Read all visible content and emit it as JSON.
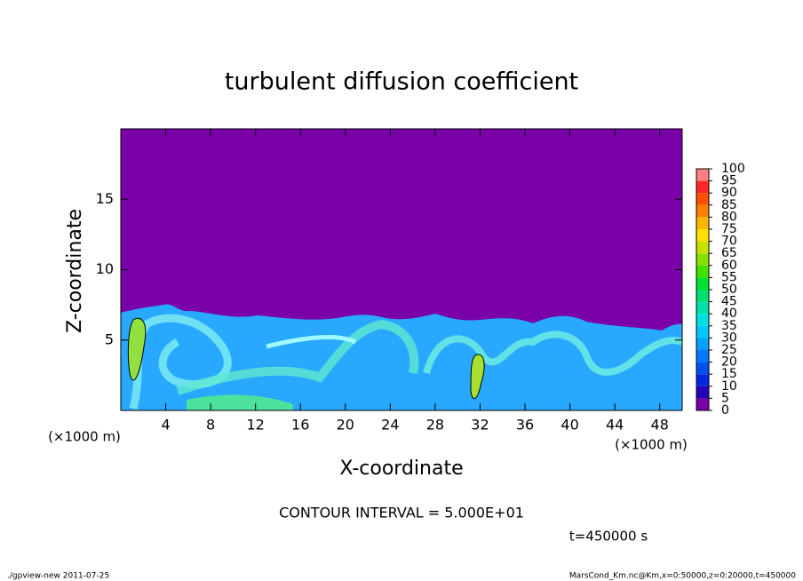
{
  "chart_data": {
    "type": "heatmap",
    "title": "turbulent diffusion coefficient",
    "xlabel": "X-coordinate",
    "ylabel": "Z-coordinate",
    "x_unit_label": "(×1000 m)",
    "xlim": [
      0,
      50
    ],
    "xticks": [
      4,
      8,
      12,
      16,
      20,
      24,
      28,
      32,
      36,
      40,
      44,
      48
    ],
    "ylim": [
      0,
      20
    ],
    "yticks": [
      5,
      10,
      15
    ],
    "colorbar": {
      "levels": [
        0,
        5,
        10,
        15,
        20,
        25,
        30,
        35,
        40,
        45,
        50,
        55,
        60,
        65,
        70,
        75,
        80,
        85,
        90,
        95,
        100
      ],
      "colors": [
        "#7a00a8",
        "#2400b8",
        "#0028e0",
        "#0050f0",
        "#0078ff",
        "#00a0ff",
        "#00c8ff",
        "#00e0e0",
        "#00e0a8",
        "#00e070",
        "#00e030",
        "#40e000",
        "#88e000",
        "#c8e000",
        "#ffe000",
        "#ffb400",
        "#ff8000",
        "#ff5000",
        "#ff2828",
        "#ff8080"
      ]
    },
    "contour_interval": "CONTOUR INTERVAL = 5.000E+01",
    "time_label": "t=450000 s",
    "footer_left": "./gpview-new  2011-07-25",
    "footer_right": "MarsCond_Km.nc@Km,x=0:50000,z=0:20000,t=450000"
  }
}
